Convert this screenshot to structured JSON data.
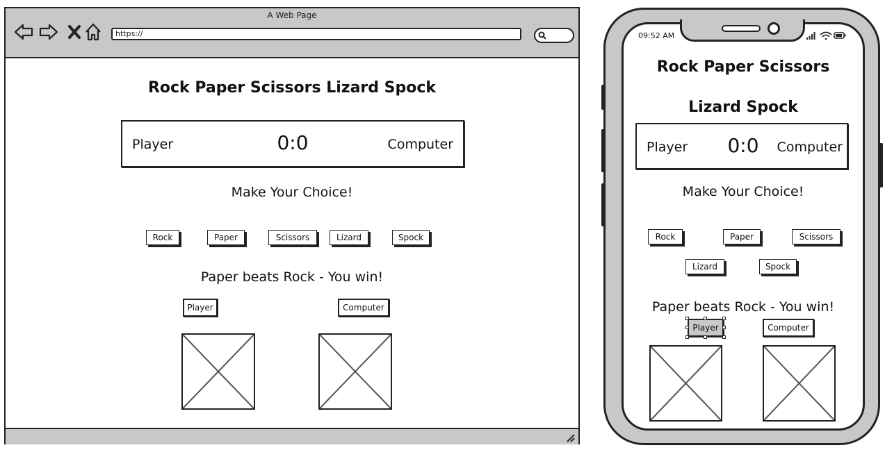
{
  "browser": {
    "title": "A Web Page",
    "url": "https://",
    "nav_icons": [
      "back-arrow-icon",
      "forward-arrow-icon",
      "close-x-icon",
      "home-icon"
    ],
    "search_icon": "search-icon"
  },
  "desktop": {
    "heading": "Rock Paper Scissors Lizard Spock",
    "score": {
      "player_label": "Player",
      "value": "0:0",
      "computer_label": "Computer"
    },
    "prompt": "Make Your Choice!",
    "choices": [
      "Rock",
      "Paper",
      "Scissors",
      "Lizard",
      "Spock"
    ],
    "result": "Paper beats Rock - You win!",
    "player_tag": "Player",
    "computer_tag": "Computer"
  },
  "phone": {
    "time": "09:52 AM",
    "heading_line1": "Rock Paper Scissors",
    "heading_line2": "Lizard Spock",
    "score": {
      "player_label": "Player",
      "value": "0:0",
      "computer_label": "Computer"
    },
    "prompt": "Make Your Choice!",
    "choices": [
      "Rock",
      "Paper",
      "Scissors",
      "Lizard",
      "Spock"
    ],
    "result": "Paper beats Rock - You win!",
    "player_tag": "Player",
    "computer_tag": "Computer"
  },
  "colors": {
    "frame_gray": "#c8c8c8",
    "ink": "#222222",
    "background": "#ffffff"
  }
}
